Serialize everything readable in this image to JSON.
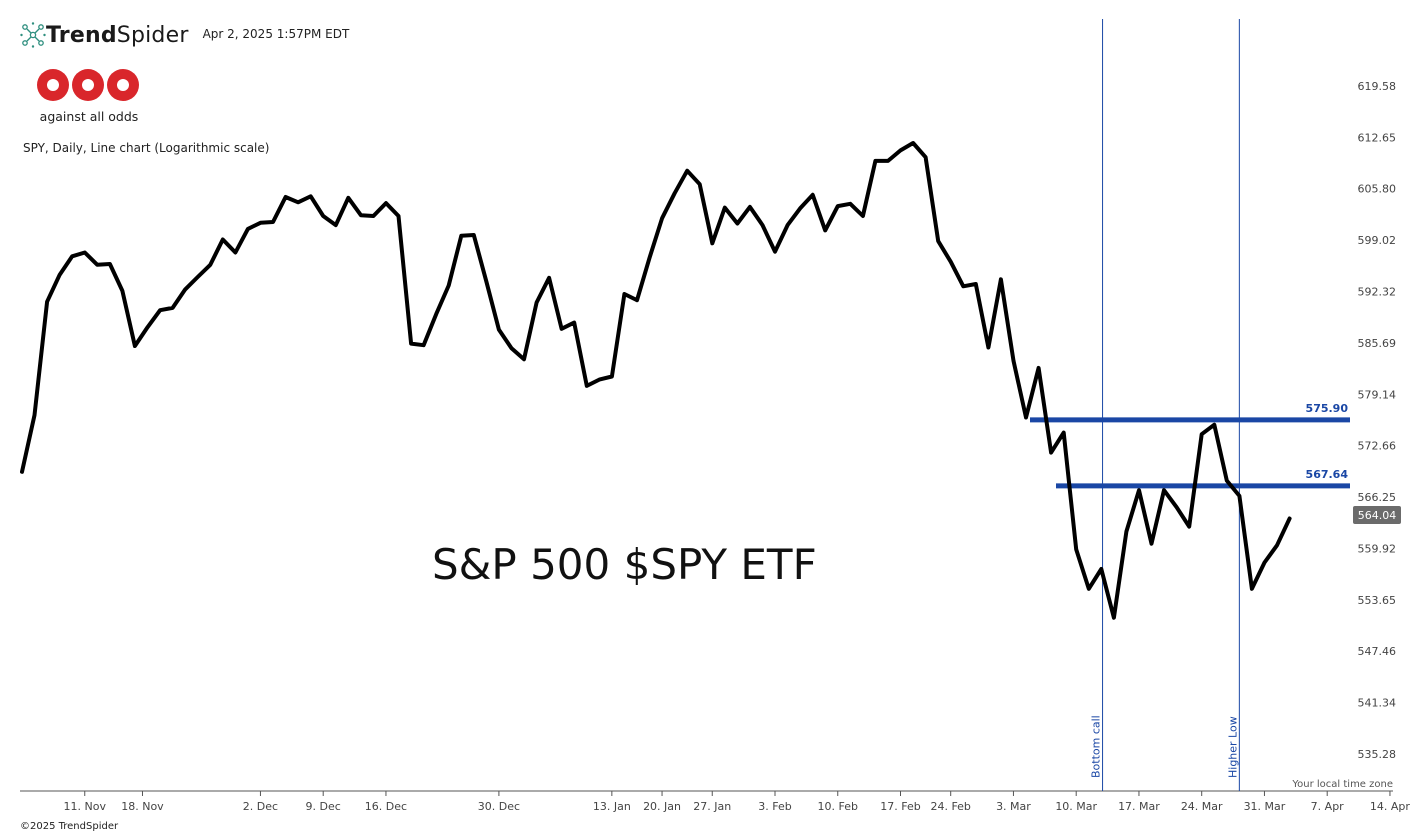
{
  "brand": {
    "name_bold": "Trend",
    "name_light": "Spider",
    "timestamp": "Apr 2, 2025 1:57PM EDT",
    "logo_tagline": "against all odds",
    "footer": "©2025 TrendSpider"
  },
  "timezone_note": "Your local time zone",
  "colors": {
    "line": "#000000",
    "level": "#1a47a5",
    "vline": "#1a47a5",
    "price_badge": "#6b6b6b",
    "grid_text": "#444444",
    "logo_red": "#d9262b"
  },
  "chart_data": {
    "type": "line",
    "description": "SPY, Daily, Line chart (Logarithmic scale)",
    "title": "S&P 500 $SPY ETF",
    "scale": "log",
    "series": [
      {
        "values": [
          569.4,
          576.5,
          591.0,
          594.5,
          596.9,
          597.4,
          595.8,
          595.9,
          592.4,
          585.3,
          587.7,
          589.9,
          590.2,
          592.6,
          594.2,
          595.8,
          599.1,
          597.4,
          600.5,
          601.3,
          601.4,
          604.7,
          604.0,
          604.8,
          602.2,
          601.0,
          604.6,
          602.3,
          602.2,
          603.9,
          602.2,
          585.6,
          585.4,
          589.4,
          593.1,
          599.6,
          599.7,
          593.6,
          587.4,
          585.0,
          583.6,
          590.9,
          594.1,
          587.5,
          588.3,
          580.2,
          581.0,
          581.4,
          592.0,
          591.2,
          596.7,
          601.9,
          605.2,
          608.2,
          606.4,
          598.6,
          603.3,
          601.2,
          603.4,
          601.0,
          597.5,
          601.0,
          603.2,
          605.0,
          600.3,
          603.5,
          603.8,
          602.2,
          609.5,
          609.5,
          610.9,
          611.9,
          610.0,
          598.9,
          596.2,
          593.0,
          593.3,
          585.1,
          593.9,
          583.4,
          576.2,
          582.5,
          571.8,
          574.3,
          559.8,
          555.0,
          557.4,
          551.5,
          562.0,
          567.1,
          560.5,
          567.1,
          565.0,
          562.6,
          574.1,
          575.3,
          568.3,
          566.4,
          555.0,
          558.2,
          560.3,
          563.6
        ]
      }
    ],
    "x_ticks": [
      "11. Nov",
      "18. Nov",
      "2. Dec",
      "9. Dec",
      "16. Dec",
      "30. Dec",
      "13. Jan",
      "20. Jan",
      "27. Jan",
      "3. Feb",
      "10. Feb",
      "17. Feb",
      "24. Feb",
      "3. Mar",
      "10. Mar",
      "17. Mar",
      "24. Mar",
      "31. Mar",
      "7. Apr",
      "14. Apr"
    ],
    "y_ticks": [
      "619.58",
      "612.65",
      "605.80",
      "599.02",
      "592.32",
      "585.69",
      "579.14",
      "572.66",
      "566.25",
      "559.92",
      "553.65",
      "547.46",
      "541.34",
      "535.28"
    ],
    "last_price": "564.04",
    "levels": [
      {
        "label": "575.90",
        "value": 575.9
      },
      {
        "label": "567.64",
        "value": 567.64
      }
    ],
    "markers": [
      {
        "label": "Bottom call"
      },
      {
        "label": "Higher Low"
      }
    ]
  }
}
